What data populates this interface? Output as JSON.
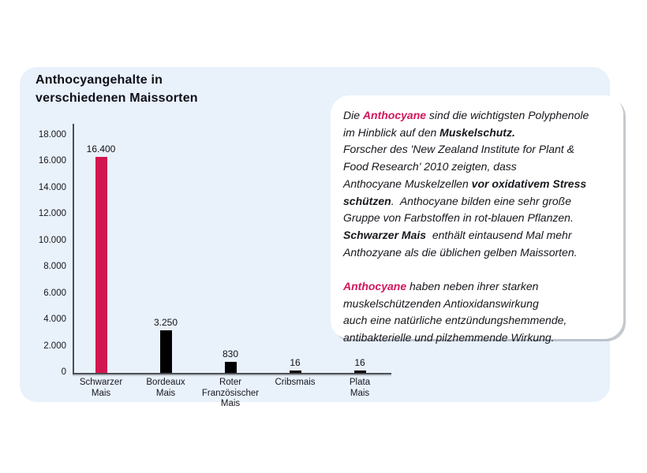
{
  "title": "Anthocyangehalte in\nverschiedenen Maissorten",
  "colors": {
    "accent_pink": "#d4155c",
    "bar_highlight": "#d21750",
    "bar_default": "#000000",
    "panel_background": "#e9f1fb"
  },
  "chart_data": {
    "type": "bar",
    "title": "Anthocyangehalte in verschiedenen Maissorten",
    "categories": [
      "Schwarzer Mais",
      "Bordeaux Mais",
      "Roter Französischer Mais",
      "Cribsmais",
      "Plata Mais"
    ],
    "category_labels": [
      "Schwarzer\nMais",
      "Bordeaux\nMais",
      "Roter\nFranzösischer\nMais",
      "Cribsmais",
      "Plata\nMais"
    ],
    "values": [
      16400,
      3250,
      830,
      16,
      16
    ],
    "value_labels": [
      "16.400",
      "3.250",
      "830",
      "16",
      "16"
    ],
    "bar_colors": [
      "#d21750",
      "#000000",
      "#000000",
      "#000000",
      "#000000"
    ],
    "xlabel": "",
    "ylabel": "",
    "ylim": [
      0,
      18000
    ],
    "ytick_values": [
      18000,
      16000,
      14000,
      12000,
      10000,
      8000,
      6000,
      4000,
      2000,
      0
    ],
    "ytick_labels": [
      "18.000",
      "16.000",
      "14.000",
      "12.000",
      "10.000",
      "8.000",
      "6.000",
      "4.000",
      "2.000",
      "0"
    ],
    "grid": false,
    "legend": false
  },
  "info_box": {
    "paragraphs": [
      {
        "segments": [
          {
            "style": "normal",
            "text": "Die "
          },
          {
            "style": "accent",
            "text": "Anthocyane"
          },
          {
            "style": "normal",
            "text": " sind die wichtigsten Polyphenole\nim Hinblick auf den "
          },
          {
            "style": "bold",
            "text": "Muskelschutz."
          },
          {
            "style": "normal",
            "text": "\nForscher des 'New Zealand Institute for Plant &\nFood Research' 2010 zeigten, dass\nAnthocyane Muskelzellen "
          },
          {
            "style": "bold",
            "text": "vor oxidativem Stress\nschützen"
          },
          {
            "style": "normal",
            "text": ".  Anthocyane bilden eine sehr große\nGruppe von Farbstoffen in rot-blauen Pflanzen.\n"
          },
          {
            "style": "bold",
            "text": "Schwarzer Mais"
          },
          {
            "style": "normal",
            "text": "  enthält eintausend Mal mehr\nAnthozyane als die üblichen gelben Maissorten."
          }
        ]
      },
      {
        "segments": [
          {
            "style": "accent",
            "text": "Anthocyane"
          },
          {
            "style": "normal",
            "text": " haben neben ihrer starken\nmuskelschützenden Antioxidanswirkung\nauch eine natürliche entzündungshemmende,\nantibakterielle und pilzhemmende Wirkung."
          }
        ]
      }
    ]
  }
}
